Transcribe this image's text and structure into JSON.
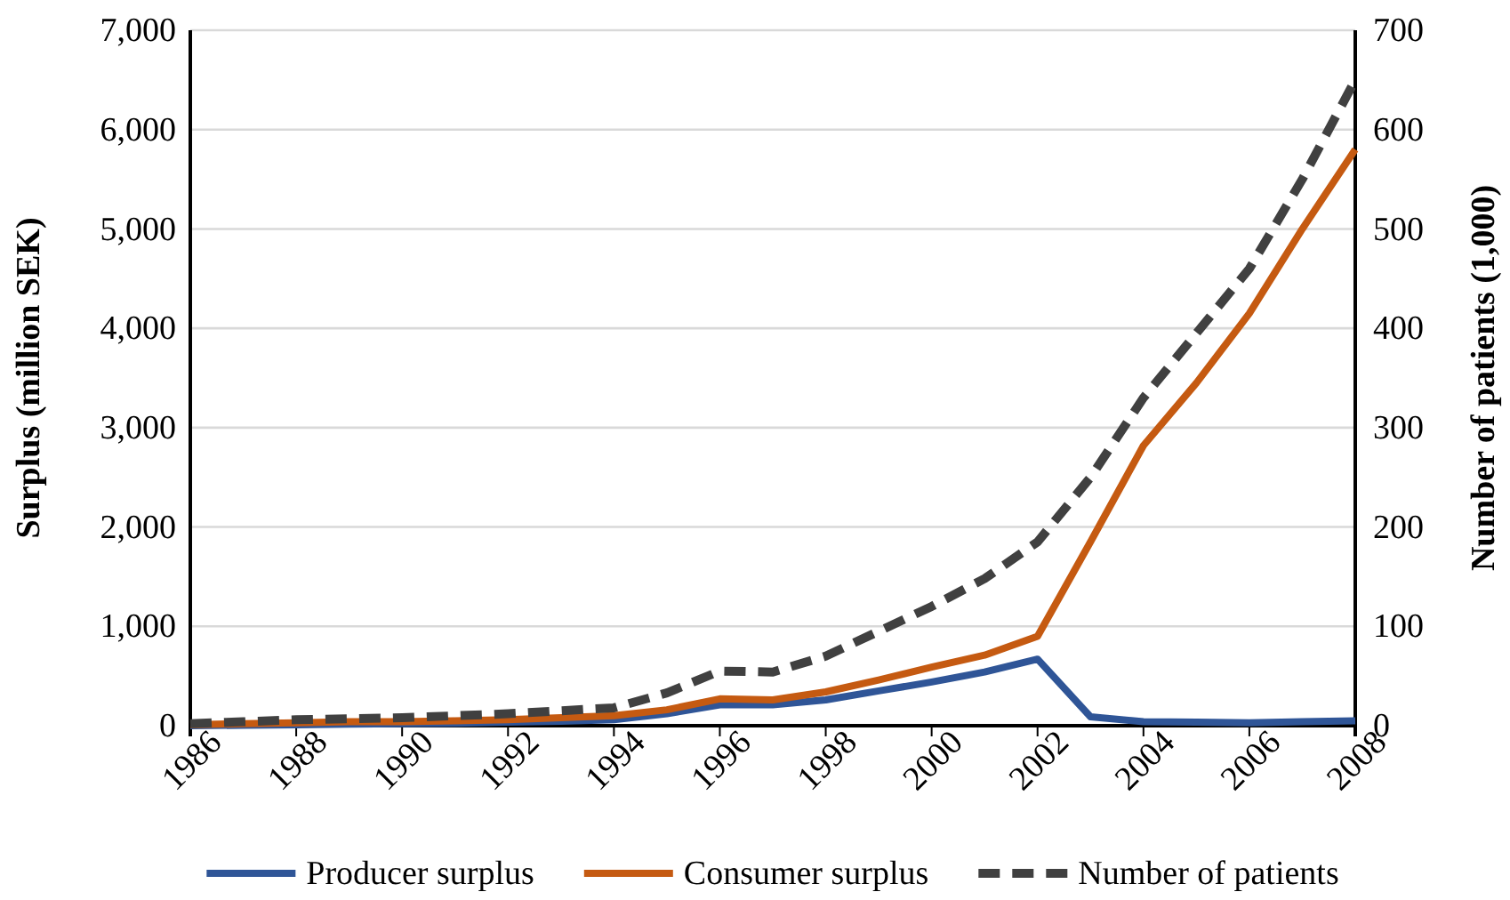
{
  "chart_data": {
    "type": "line",
    "ylabel": "Surplus (million SEK)",
    "y2label": "Number of patients (1,000)",
    "x": [
      1986,
      1987,
      1988,
      1989,
      1990,
      1991,
      1992,
      1993,
      1994,
      1995,
      1996,
      1997,
      1998,
      1999,
      2000,
      2001,
      2002,
      2003,
      2004,
      2005,
      2006,
      2007,
      2008
    ],
    "series": [
      {
        "name": "Producer surplus",
        "color": "#2f5597",
        "values": [
          0,
          5,
          10,
          15,
          20,
          25,
          35,
          45,
          60,
          120,
          210,
          210,
          260,
          350,
          440,
          540,
          670,
          90,
          40,
          35,
          30,
          40,
          50
        ]
      },
      {
        "name": "Consumer surplus",
        "color": "#c55a11",
        "values": [
          10,
          20,
          30,
          40,
          40,
          50,
          60,
          80,
          100,
          160,
          270,
          260,
          340,
          460,
          590,
          710,
          900,
          1850,
          2820,
          3450,
          4150,
          5000,
          5800
        ]
      },
      {
        "name": "Number of patients",
        "color": "#404040",
        "axis": "y2",
        "line_style": "dashed",
        "values": [
          2,
          4,
          6,
          7,
          8,
          10,
          12,
          15,
          18,
          33,
          55,
          54,
          70,
          95,
          120,
          148,
          185,
          250,
          330,
          395,
          460,
          550,
          650
        ]
      }
    ],
    "xlim": [
      1986,
      2008
    ],
    "xticks": [
      1986,
      1988,
      1990,
      1992,
      1994,
      1996,
      1998,
      2000,
      2002,
      2004,
      2006,
      2008
    ],
    "ylim": [
      0,
      7000
    ],
    "yticks": [
      {
        "value": 0,
        "label": "0"
      },
      {
        "value": 1000,
        "label": "1,000"
      },
      {
        "value": 2000,
        "label": "2,000"
      },
      {
        "value": 3000,
        "label": "3,000"
      },
      {
        "value": 4000,
        "label": "4,000"
      },
      {
        "value": 5000,
        "label": "5,000"
      },
      {
        "value": 6000,
        "label": "6,000"
      },
      {
        "value": 7000,
        "label": "7,000"
      }
    ],
    "y2lim": [
      0,
      700
    ],
    "y2ticks": [
      0,
      100,
      200,
      300,
      400,
      500,
      600,
      700
    ],
    "grid": "y",
    "legend": "bottom",
    "line_style": "solid",
    "marker": "none"
  }
}
